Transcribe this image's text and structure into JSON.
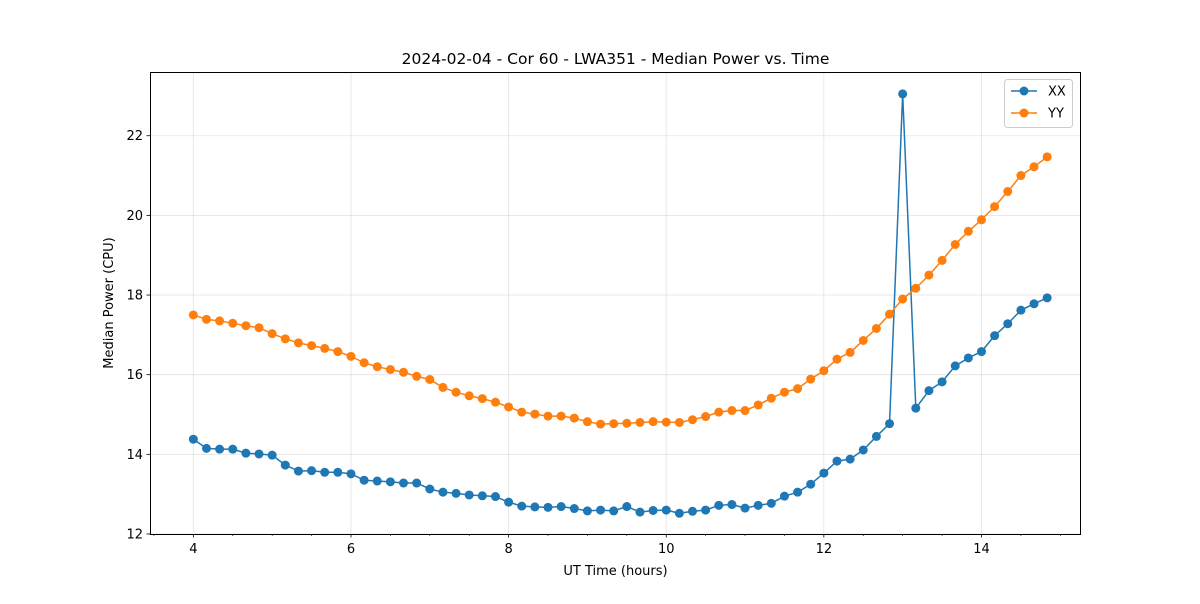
{
  "chart_data": {
    "type": "line",
    "title": "2024-02-04 - Cor 60 - LWA351 - Median Power vs. Time",
    "xlabel": "UT Time (hours)",
    "ylabel": "Median Power (CPU)",
    "xlim": [
      3.45,
      15.25
    ],
    "ylim": [
      12,
      23.6
    ],
    "xticks": [
      4,
      6,
      8,
      10,
      12,
      14
    ],
    "xticks_minor_step": 0.5,
    "yticks": [
      12,
      14,
      16,
      18,
      20,
      22
    ],
    "grid": true,
    "legend_position": "top-right",
    "x": [
      4.0,
      4.1667,
      4.3333,
      4.5,
      4.6667,
      4.8333,
      5.0,
      5.1667,
      5.3333,
      5.5,
      5.6667,
      5.8333,
      6.0,
      6.1667,
      6.3333,
      6.5,
      6.6667,
      6.8333,
      7.0,
      7.1667,
      7.3333,
      7.5,
      7.6667,
      7.8333,
      8.0,
      8.1667,
      8.3333,
      8.5,
      8.6667,
      8.8333,
      9.0,
      9.1667,
      9.3333,
      9.5,
      9.6667,
      9.8333,
      10.0,
      10.1667,
      10.3333,
      10.5,
      10.6667,
      10.8333,
      11.0,
      11.1667,
      11.3333,
      11.5,
      11.6667,
      11.8333,
      12.0,
      12.1667,
      12.3333,
      12.5,
      12.6667,
      12.8333,
      13.0,
      13.1667,
      13.3333,
      13.5,
      13.6667,
      13.8333,
      14.0,
      14.1667,
      14.3333,
      14.5,
      14.6667,
      14.8333
    ],
    "series": [
      {
        "name": "XX",
        "color": "#1f77b4",
        "values": [
          14.38,
          14.15,
          14.13,
          14.13,
          14.03,
          14.01,
          13.98,
          13.73,
          13.58,
          13.59,
          13.55,
          13.55,
          13.51,
          13.35,
          13.33,
          13.31,
          13.28,
          13.28,
          13.13,
          13.05,
          13.02,
          12.98,
          12.96,
          12.94,
          12.8,
          12.7,
          12.68,
          12.67,
          12.69,
          12.64,
          12.58,
          12.6,
          12.58,
          12.69,
          12.55,
          12.59,
          12.6,
          12.52,
          12.57,
          12.6,
          12.72,
          12.74,
          12.65,
          12.72,
          12.77,
          12.95,
          13.05,
          13.25,
          13.53,
          13.83,
          13.88,
          14.11,
          14.45,
          14.77,
          23.05,
          15.16,
          15.6,
          15.82,
          16.22,
          16.42,
          16.58,
          16.98,
          17.28,
          17.62,
          17.78,
          17.93
        ]
      },
      {
        "name": "YY",
        "color": "#ff7f0e",
        "values": [
          17.5,
          17.39,
          17.35,
          17.29,
          17.23,
          17.18,
          17.03,
          16.9,
          16.8,
          16.73,
          16.66,
          16.58,
          16.46,
          16.3,
          16.2,
          16.13,
          16.06,
          15.96,
          15.88,
          15.68,
          15.56,
          15.47,
          15.4,
          15.31,
          15.19,
          15.06,
          15.01,
          14.96,
          14.96,
          14.91,
          14.82,
          14.76,
          14.77,
          14.78,
          14.8,
          14.82,
          14.81,
          14.8,
          14.87,
          14.95,
          15.06,
          15.1,
          15.1,
          15.24,
          15.41,
          15.56,
          15.65,
          15.89,
          16.1,
          16.39,
          16.56,
          16.86,
          17.16,
          17.52,
          17.9,
          18.17,
          18.5,
          18.87,
          19.27,
          19.6,
          19.89,
          20.22,
          20.6,
          21.0,
          21.22,
          21.47
        ]
      }
    ]
  }
}
